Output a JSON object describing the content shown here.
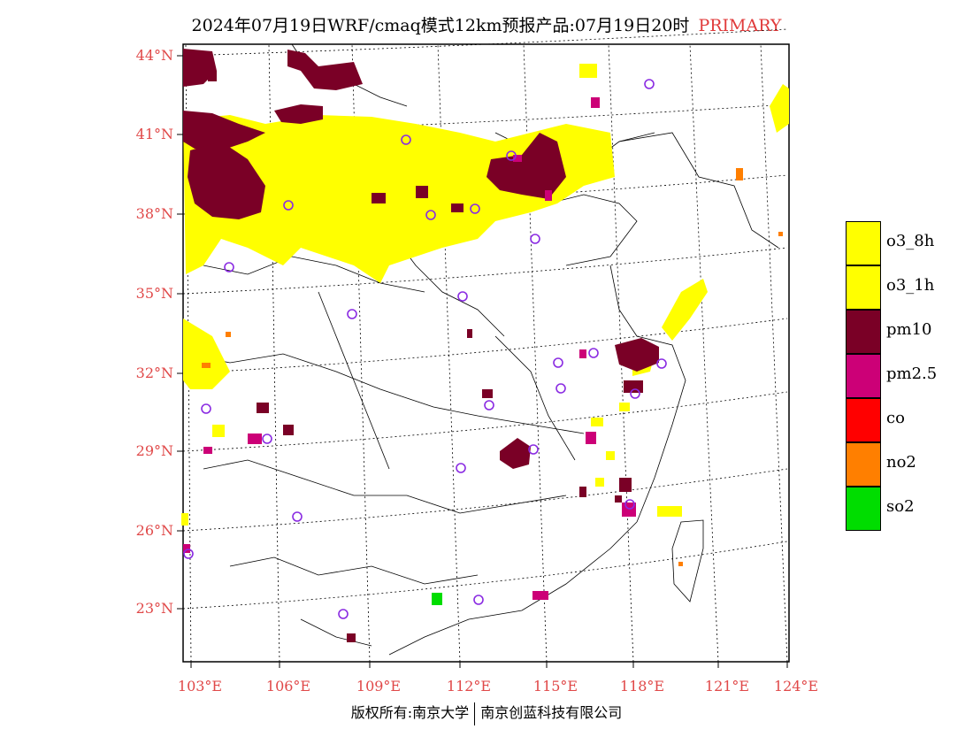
{
  "title": {
    "main": "2024年07月19日WRF/cmaq模式12km预报产品:07月19日20时",
    "tag": "PRIMARY"
  },
  "lat_labels": [
    "44°N",
    "41°N",
    "38°N",
    "35°N",
    "32°N",
    "29°N",
    "26°N",
    "23°N"
  ],
  "lon_labels": [
    "103°E",
    "106°E",
    "109°E",
    "112°E",
    "115°E",
    "118°E",
    "121°E",
    "124°E"
  ],
  "legend": [
    {
      "label": "o3_8h",
      "color": "#ffff00"
    },
    {
      "label": "o3_1h",
      "color": "#ffff00"
    },
    {
      "label": "pm10",
      "color": "#7a0026"
    },
    {
      "label": "pm2.5",
      "color": "#cc0077"
    },
    {
      "label": "co",
      "color": "#ff0000"
    },
    {
      "label": "no2",
      "color": "#ff7f00"
    },
    {
      "label": "so2",
      "color": "#00dd00"
    }
  ],
  "credit": {
    "left": "版权所有:南京大学",
    "right": "南京创蓝科技有限公司"
  }
}
